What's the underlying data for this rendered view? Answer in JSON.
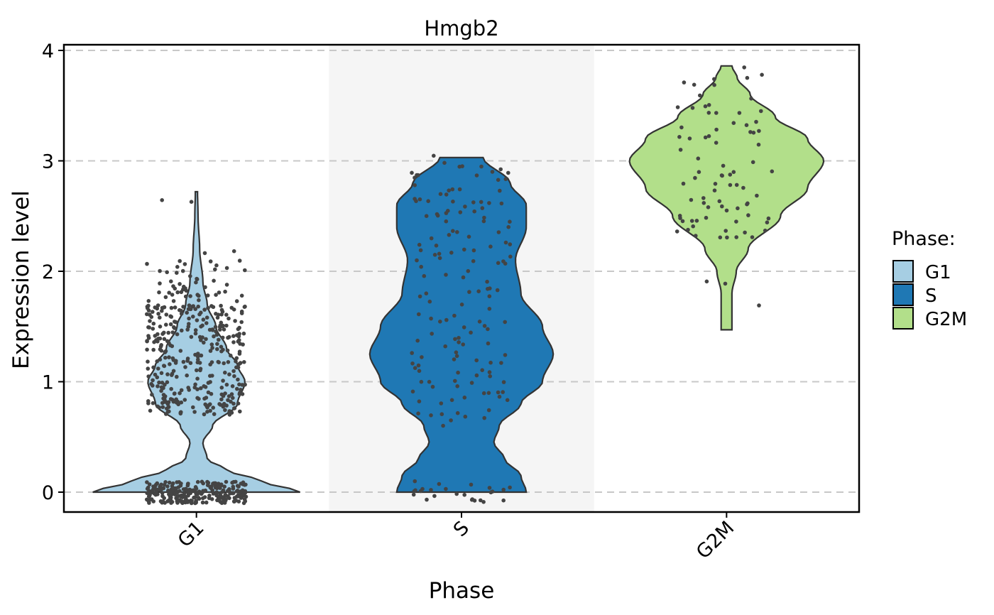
{
  "chart_data": {
    "type": "violin",
    "title": "Hmgb2",
    "xlabel": "Phase",
    "ylabel": "Expression level",
    "categories": [
      "G1",
      "S",
      "G2M"
    ],
    "colors": {
      "G1": "#a6cee3",
      "S": "#1f78b4",
      "G2M": "#b2df8a"
    },
    "ylim": [
      -0.18,
      4.05
    ],
    "yticks": [
      0,
      1,
      2,
      3,
      4
    ],
    "grid": "horizontal-dashed",
    "legend": {
      "title": "Phase:",
      "placement": "right",
      "entries": [
        "G1",
        "S",
        "G2M"
      ]
    },
    "highlighted_band": "S",
    "violins": [
      {
        "category": "G1",
        "y_min": 0.0,
        "y_max": 2.72,
        "profile": [
          [
            0.0,
            0.96
          ],
          [
            0.1,
            0.6
          ],
          [
            0.2,
            0.28
          ],
          [
            0.3,
            0.1
          ],
          [
            0.45,
            0.06
          ],
          [
            0.6,
            0.15
          ],
          [
            0.8,
            0.38
          ],
          [
            1.0,
            0.45
          ],
          [
            1.15,
            0.38
          ],
          [
            1.3,
            0.28
          ],
          [
            1.5,
            0.18
          ],
          [
            1.7,
            0.1
          ],
          [
            1.9,
            0.06
          ],
          [
            2.2,
            0.03
          ],
          [
            2.5,
            0.015
          ],
          [
            2.72,
            0.01
          ]
        ],
        "points_approx": "dense cluster 0.0–0.1, dense cluster 0.7–1.7, sparse up to 2.65"
      },
      {
        "category": "S",
        "y_min": 0.0,
        "y_max": 3.03,
        "profile": [
          [
            0.0,
            0.6
          ],
          [
            0.15,
            0.55
          ],
          [
            0.3,
            0.4
          ],
          [
            0.45,
            0.3
          ],
          [
            0.6,
            0.35
          ],
          [
            0.8,
            0.55
          ],
          [
            1.0,
            0.75
          ],
          [
            1.25,
            0.85
          ],
          [
            1.5,
            0.75
          ],
          [
            1.8,
            0.55
          ],
          [
            2.1,
            0.5
          ],
          [
            2.4,
            0.6
          ],
          [
            2.6,
            0.6
          ],
          [
            2.8,
            0.45
          ],
          [
            3.03,
            0.2
          ]
        ],
        "points_approx": "spread 0.0–3.05"
      },
      {
        "category": "G2M",
        "y_min": 1.47,
        "y_max": 3.86,
        "profile": [
          [
            1.47,
            0.05
          ],
          [
            1.6,
            0.05
          ],
          [
            1.8,
            0.05
          ],
          [
            2.0,
            0.09
          ],
          [
            2.2,
            0.2
          ],
          [
            2.5,
            0.5
          ],
          [
            2.75,
            0.75
          ],
          [
            3.0,
            0.9
          ],
          [
            3.2,
            0.75
          ],
          [
            3.4,
            0.45
          ],
          [
            3.6,
            0.22
          ],
          [
            3.75,
            0.1
          ],
          [
            3.86,
            0.05
          ]
        ],
        "points_approx": "spread 1.4–3.85, most 2.3–3.5"
      }
    ]
  }
}
